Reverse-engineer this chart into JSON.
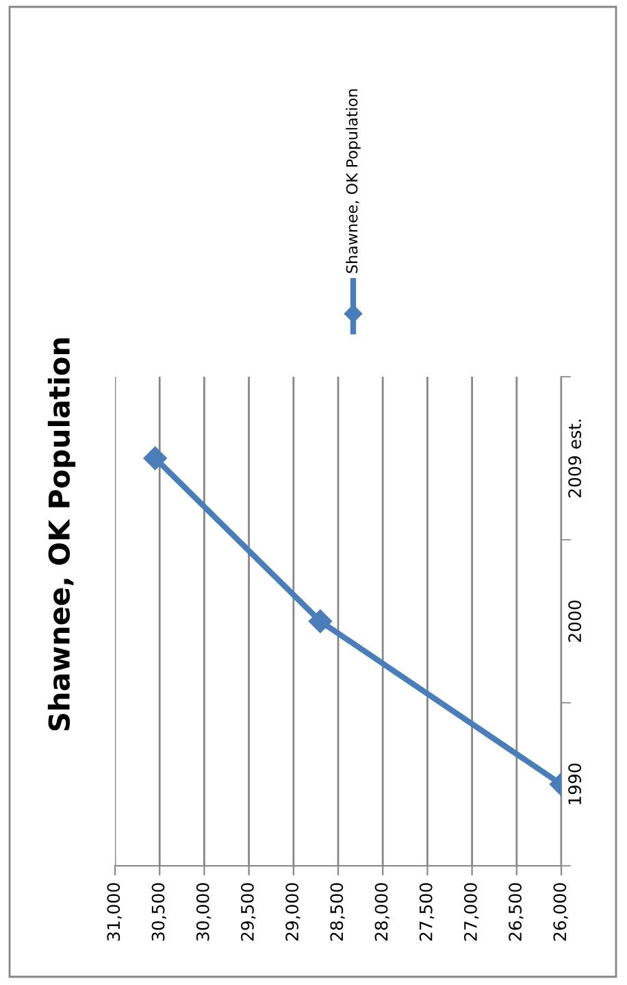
{
  "chart_data": {
    "type": "line",
    "title": "Shawnee, OK Population",
    "orientation": "horizontal",
    "categories": [
      "2009 est.",
      "2000",
      "1990"
    ],
    "series": [
      {
        "name": "Shawnee, OK Population",
        "color": "#4a7ebb",
        "values": [
          30550,
          28700,
          26000
        ]
      }
    ],
    "xlim": [
      31000,
      26000
    ],
    "xticks": [
      {
        "value": 31000,
        "label": "31,000"
      },
      {
        "value": 30500,
        "label": "30,500"
      },
      {
        "value": 30000,
        "label": "30,000"
      },
      {
        "value": 29500,
        "label": "29,500"
      },
      {
        "value": 29000,
        "label": "29,000"
      },
      {
        "value": 28500,
        "label": "28,500"
      },
      {
        "value": 28000,
        "label": "28,000"
      },
      {
        "value": 27500,
        "label": "27,500"
      },
      {
        "value": 27000,
        "label": "27,000"
      },
      {
        "value": 26500,
        "label": "26,500"
      },
      {
        "value": 26000,
        "label": "26,000"
      }
    ],
    "grid": "x",
    "legend": "top",
    "marker": "diamond",
    "line_style": "solid"
  }
}
